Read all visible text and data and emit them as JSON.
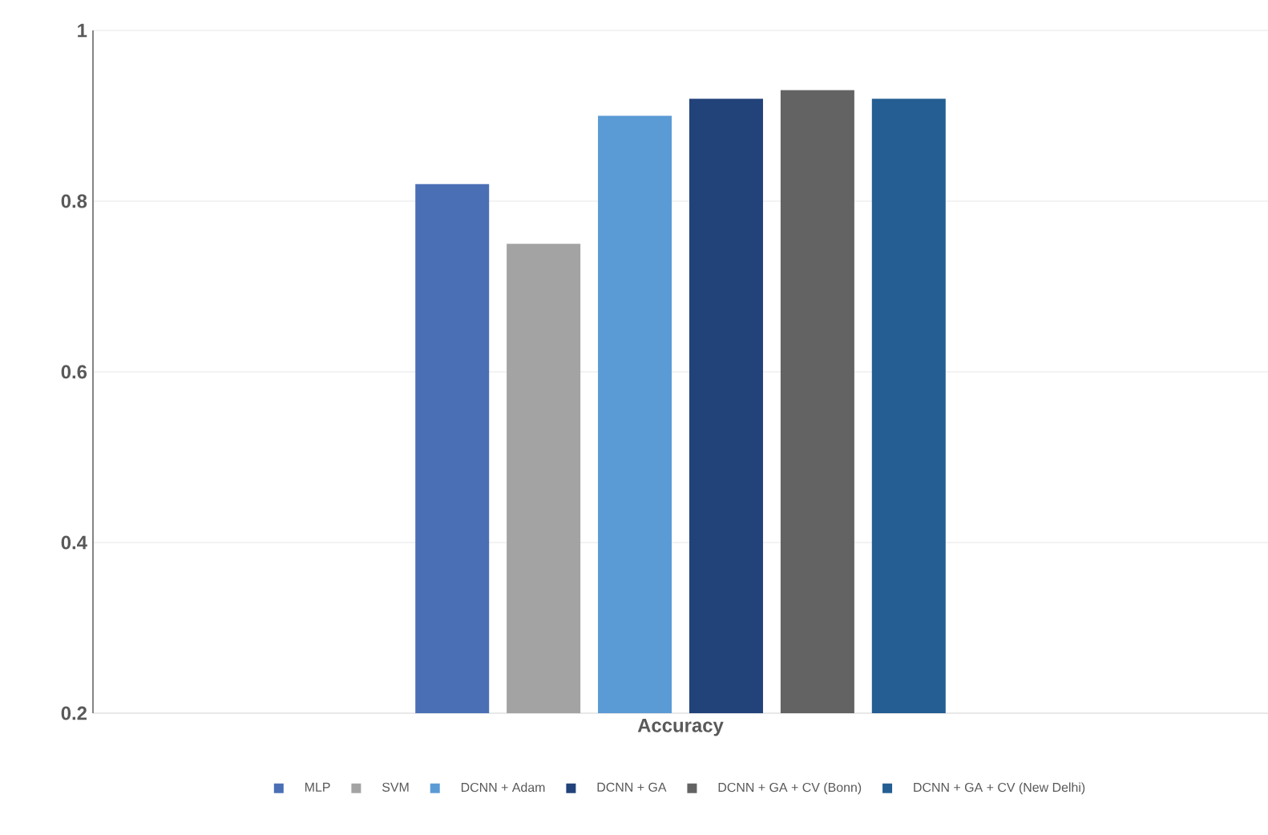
{
  "chart_data": {
    "type": "bar",
    "categories": [
      "Accuracy"
    ],
    "series": [
      {
        "name": "MLP",
        "color": "#4a6fb5",
        "values": [
          0.82
        ]
      },
      {
        "name": "SVM",
        "color": "#a3a3a3",
        "values": [
          0.75
        ]
      },
      {
        "name": "DCNN + Adam",
        "color": "#5b9bd5",
        "values": [
          0.9
        ]
      },
      {
        "name": "DCNN + GA",
        "color": "#22427a",
        "values": [
          0.92
        ]
      },
      {
        "name": "DCNN + GA + CV (Bonn)",
        "color": "#636363",
        "values": [
          0.93
        ]
      },
      {
        "name": "DCNN + GA + CV (New Delhi)",
        "color": "#245e92",
        "values": [
          0.92
        ]
      }
    ],
    "ylim": [
      0.2,
      1
    ],
    "yticks": [
      0.2,
      0.4,
      0.6,
      0.8,
      1
    ],
    "grid": "y",
    "legend": "bottom"
  }
}
